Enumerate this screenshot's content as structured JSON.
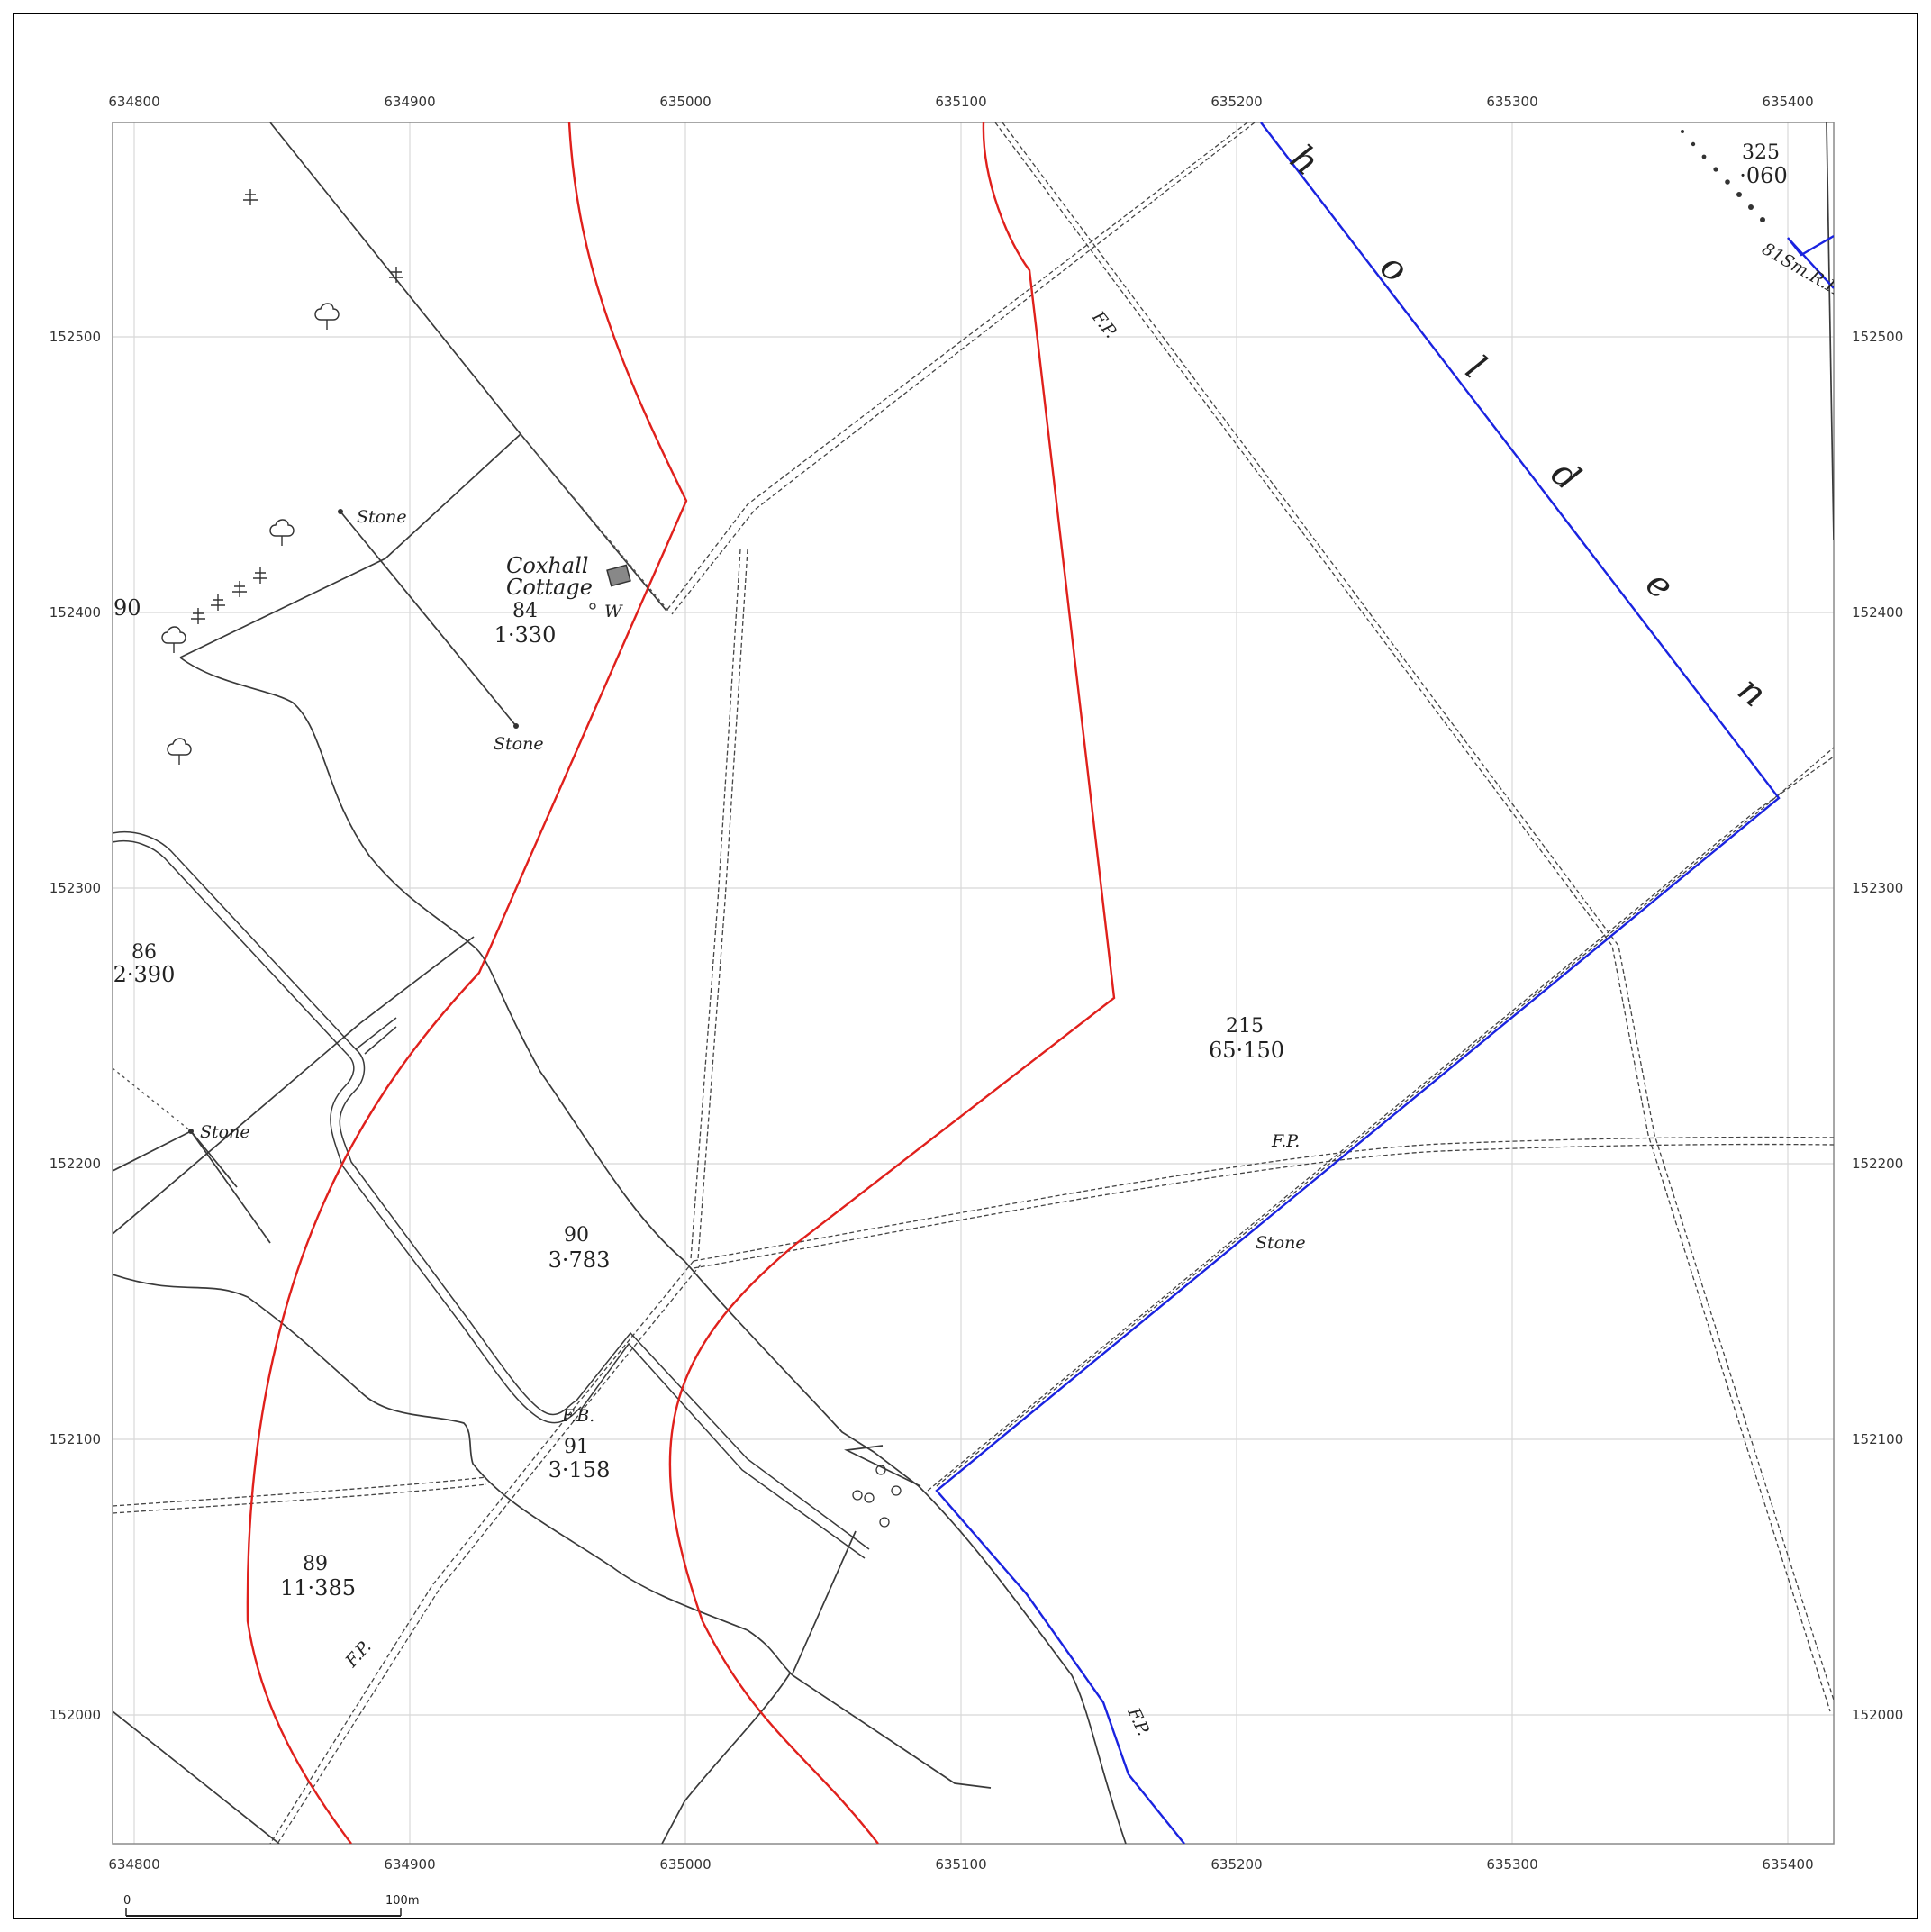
{
  "map": {
    "x_ticks": [
      "634800",
      "634900",
      "635000",
      "635100",
      "635200",
      "635300",
      "635400"
    ],
    "y_ticks": [
      "152500",
      "152400",
      "152300",
      "152200",
      "152100",
      "152000"
    ],
    "edge_label_90": "90",
    "colors": {
      "grid": "#d8d8d8",
      "line": "#3a3a3a",
      "red_boundary": "#e0201c",
      "blue_boundary": "#1a23e0"
    }
  },
  "parcels": [
    {
      "id": "84",
      "area": "1·330"
    },
    {
      "id": "86",
      "area": "2·390"
    },
    {
      "id": "90",
      "area": "3·783"
    },
    {
      "id": "91",
      "area": "3·158"
    },
    {
      "id": "89",
      "area": "11·385"
    },
    {
      "id": "215",
      "area": "65·150"
    },
    {
      "id": "325",
      "area": "·060"
    }
  ],
  "labels": {
    "coxhall_1": "Coxhall",
    "coxhall_2": "Cottage",
    "well": "W",
    "stone": "Stone",
    "fp": "F.P.",
    "fb": "F.B.",
    "bm": "81Sm.R.H.",
    "holden": [
      "h",
      "o",
      "l",
      "d",
      "e",
      "n"
    ]
  },
  "scale_bar": {
    "start": "0",
    "end": "100m"
  }
}
